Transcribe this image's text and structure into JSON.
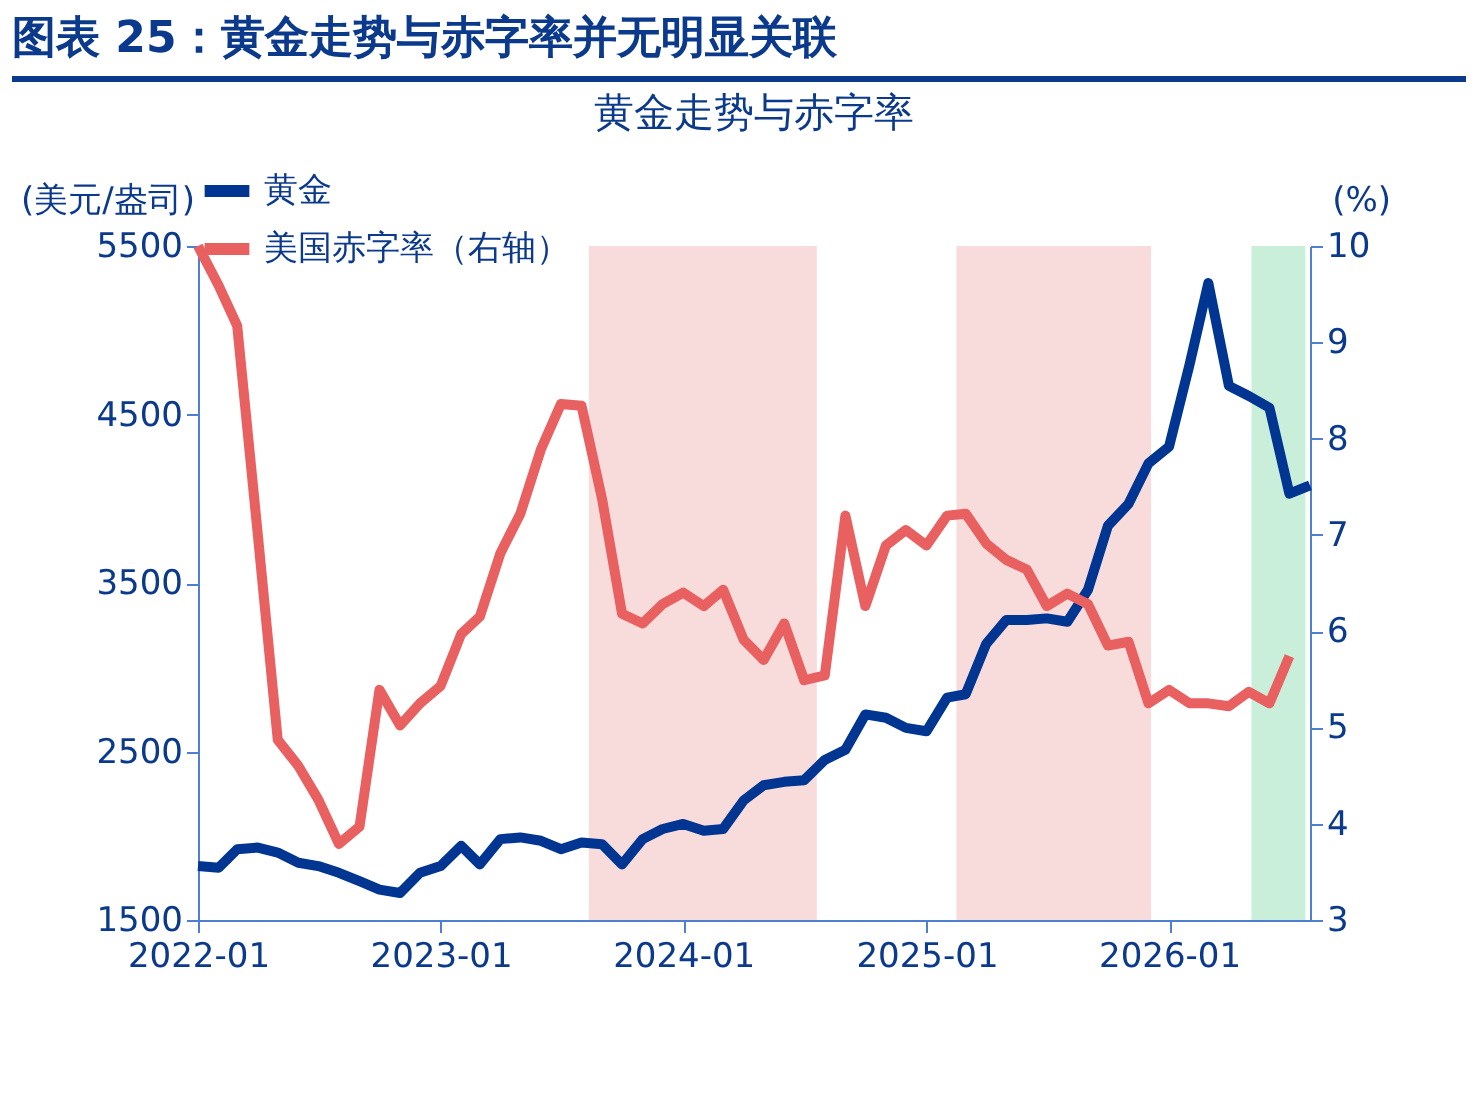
{
  "chart_data": {
    "type": "line",
    "title": "图表 25：黄金走势与赤字率并无明显关联",
    "subtitle": "黄金走势与赤字率",
    "ylabel": "(美元/盎司)",
    "y2label": "(%)",
    "x": [
      "2022-01",
      "2022-02",
      "2022-03",
      "2022-04",
      "2022-05",
      "2022-06",
      "2022-07",
      "2022-08",
      "2022-09",
      "2022-10",
      "2022-11",
      "2022-12",
      "2023-01",
      "2023-02",
      "2023-03",
      "2023-04",
      "2023-05",
      "2023-06",
      "2023-07",
      "2023-08",
      "2023-09",
      "2023-10",
      "2023-11",
      "2023-12",
      "2024-01",
      "2024-02",
      "2024-03",
      "2024-04",
      "2024-05",
      "2024-06",
      "2024-07",
      "2024-08",
      "2024-09",
      "2024-10",
      "2024-11",
      "2024-12",
      "2025-01",
      "2025-02",
      "2025-03",
      "2025-04",
      "2025-05",
      "2025-06",
      "2025-07",
      "2025-08",
      "2025-09",
      "2025-10",
      "2025-11",
      "2025-12",
      "2026-01",
      "2026-02",
      "2026-03",
      "2026-04",
      "2026-05",
      "2026-06",
      "2026-07",
      "2026-08"
    ],
    "series": [
      {
        "name": "黄金",
        "color": "#003591",
        "values": [
          1820,
          1810,
          1920,
          1930,
          1900,
          1840,
          1820,
          1780,
          1730,
          1680,
          1660,
          1780,
          1820,
          1940,
          1830,
          1980,
          1990,
          1970,
          1920,
          1960,
          1950,
          1830,
          1980,
          2040,
          2070,
          2030,
          2040,
          2210,
          2300,
          2320,
          2330,
          2450,
          2510,
          2720,
          2700,
          2640,
          2620,
          2820,
          2840,
          3140,
          3280,
          3280,
          3290,
          3270,
          3460,
          3840,
          3970,
          4210,
          4310,
          4800,
          5280,
          4670,
          4610,
          4540,
          4030,
          4080
        ]
      },
      {
        "name": "美国赤字率（右轴）",
        "color": "#e8605f",
        "axis": "y2",
        "values": [
          10.0,
          9.59,
          9.17,
          7.0,
          4.87,
          4.6,
          4.25,
          3.79,
          3.97,
          5.39,
          5.02,
          5.25,
          5.43,
          5.97,
          6.15,
          6.81,
          7.22,
          7.89,
          8.36,
          8.34,
          7.37,
          6.18,
          6.08,
          6.28,
          6.4,
          6.26,
          6.43,
          5.91,
          5.7,
          6.08,
          5.49,
          5.54,
          7.2,
          6.26,
          6.89,
          7.05,
          6.89,
          7.2,
          7.22,
          6.91,
          6.74,
          6.64,
          6.26,
          6.39,
          6.28,
          5.85,
          5.89,
          5.25,
          5.39,
          5.25,
          5.25,
          5.22,
          5.37,
          5.25,
          5.74,
          null
        ]
      }
    ],
    "xlim": [
      "2022-01",
      "2026-08"
    ],
    "xticks": [
      "2022-01",
      "2023-01",
      "2024-01",
      "2025-01",
      "2026-01"
    ],
    "ylim": [
      1500,
      5500
    ],
    "yticks": [
      1500,
      2500,
      3500,
      4500,
      5500
    ],
    "y2lim": [
      3,
      10
    ],
    "y2ticks": [
      3,
      4,
      5,
      6,
      7,
      8,
      9,
      10
    ],
    "bands": [
      {
        "axis": "x",
        "from": "2023-08-12",
        "to": "2024-07-20",
        "color": "#f8dcdc"
      },
      {
        "axis": "x",
        "from": "2025-02-15",
        "to": "2025-12-05",
        "color": "#f8dcdc"
      },
      {
        "axis": "x",
        "from": "2026-05-05",
        "to": "2026-07-25",
        "color": "#c9eed9"
      }
    ],
    "grid": false,
    "legend": "top",
    "line_style": "solid",
    "marker": "none"
  }
}
